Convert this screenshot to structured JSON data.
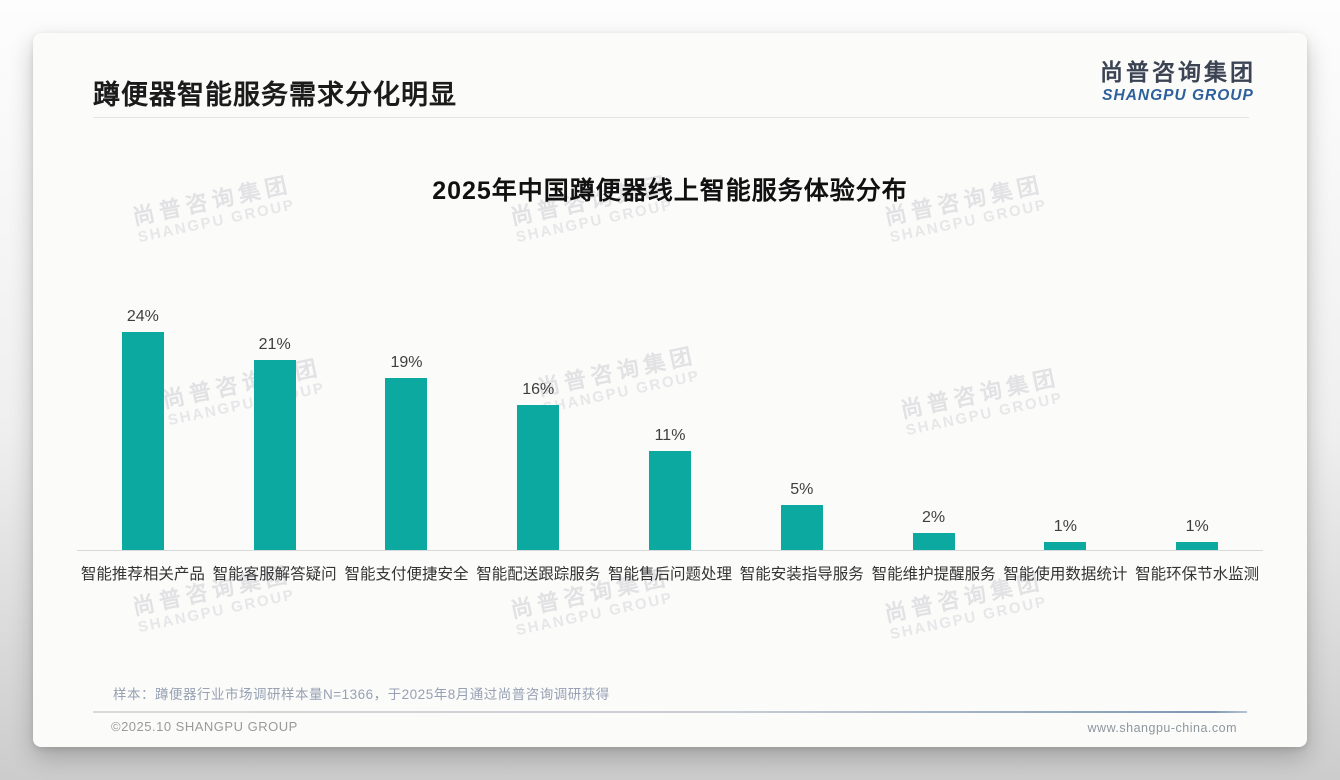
{
  "page": {
    "title": "蹲便器智能服务需求分化明显",
    "logo": {
      "cn": "尚普咨询集团",
      "en": "SHANGPU GROUP"
    },
    "watermark": {
      "cn": "尚普咨询集团",
      "en": "SHANGPU GROUP"
    },
    "sample_note": "样本：蹲便器行业市场调研样本量N=1366，于2025年8月通过尚普咨询调研获得",
    "footer": {
      "left": "©2025.10 SHANGPU GROUP",
      "right": "www.shangpu-china.com"
    }
  },
  "colors": {
    "bar": "#0BA9A0",
    "logo_blue": "#2d5f9b",
    "title_text": "#1b1b1b",
    "note_text": "#97a1b3"
  },
  "chart_data": {
    "type": "bar",
    "title": "2025年中国蹲便器线上智能服务体验分布",
    "categories": [
      "智能推荐相关产品",
      "智能客服解答疑问",
      "智能支付便捷安全",
      "智能配送跟踪服务",
      "智能售后问题处理",
      "智能安装指导服务",
      "智能维护提醒服务",
      "智能使用数据统计",
      "智能环保节水监测"
    ],
    "values": [
      24,
      21,
      19,
      16,
      11,
      5,
      2,
      1,
      1
    ],
    "value_suffix": "%",
    "value_labels": [
      "24%",
      "21%",
      "19%",
      "16%",
      "11%",
      "5%",
      "2%",
      "1%",
      "1%"
    ],
    "xlabel": "",
    "ylabel": "",
    "ylim": [
      0,
      26
    ],
    "grid": false,
    "legend": "none",
    "bar_color": "#0BA9A0"
  }
}
